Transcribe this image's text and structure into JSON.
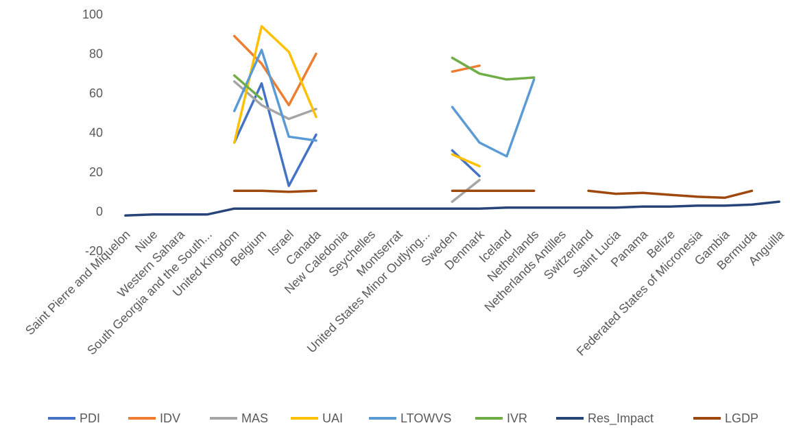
{
  "chart_data": {
    "type": "line",
    "title": "",
    "xlabel": "",
    "ylabel": "",
    "ylim": [
      -20,
      100
    ],
    "y_ticks": [
      -20,
      0,
      20,
      40,
      60,
      80,
      100
    ],
    "grid": false,
    "legend_position": "bottom",
    "categories": [
      "Saint Pierre and Miquelon",
      "Niue",
      "Western Sahara",
      "South Georgia and the South...",
      "United Kingdom",
      "Belgium",
      "Israel",
      "Canada",
      "New Caledonia",
      "Seychelles",
      "Montserrat",
      "United States Minor Outlying...",
      "Sweden",
      "Denmark",
      "Iceland",
      "Netherlands",
      "Netherlands Antilles",
      "Switzerland",
      "Saint Lucia",
      "Panama",
      "Belize",
      "Federated States of Micronesia",
      "Gambia",
      "Bermuda",
      "Anguilla"
    ],
    "series": [
      {
        "name": "PDI",
        "color": "#4472C4",
        "values": [
          null,
          null,
          null,
          null,
          35,
          65,
          13,
          39,
          null,
          null,
          null,
          null,
          31,
          18,
          null,
          null,
          null,
          null,
          null,
          null,
          null,
          null,
          null,
          null,
          null
        ]
      },
      {
        "name": "IDV",
        "color": "#ED7D31",
        "values": [
          null,
          null,
          null,
          null,
          89,
          75,
          54,
          80,
          null,
          null,
          null,
          null,
          71,
          74,
          null,
          null,
          null,
          null,
          null,
          null,
          null,
          null,
          null,
          null,
          null
        ]
      },
      {
        "name": "MAS",
        "color": "#A5A5A5",
        "values": [
          null,
          null,
          null,
          null,
          66,
          54,
          47,
          52,
          null,
          null,
          null,
          null,
          5,
          16,
          null,
          null,
          null,
          null,
          null,
          null,
          null,
          null,
          null,
          null,
          null
        ]
      },
      {
        "name": "UAI",
        "color": "#FFC000",
        "values": [
          null,
          null,
          null,
          null,
          35,
          94,
          81,
          48,
          null,
          null,
          null,
          null,
          29,
          23,
          null,
          null,
          null,
          null,
          null,
          null,
          null,
          null,
          null,
          null,
          null
        ]
      },
      {
        "name": "LTOWVS",
        "color": "#5B9BD5",
        "values": [
          null,
          null,
          null,
          null,
          51,
          82,
          38,
          36,
          null,
          null,
          null,
          null,
          53,
          35,
          28,
          67,
          null,
          null,
          null,
          null,
          null,
          null,
          null,
          null,
          null
        ]
      },
      {
        "name": "IVR",
        "color": "#70AD47",
        "values": [
          null,
          null,
          null,
          null,
          69,
          57,
          null,
          null,
          null,
          null,
          null,
          null,
          78,
          70,
          67,
          68,
          null,
          null,
          null,
          null,
          null,
          null,
          null,
          null,
          null
        ]
      },
      {
        "name": "Res_Impact",
        "color": "#264478",
        "values": [
          -2,
          -1.5,
          -1.5,
          -1.5,
          1.5,
          1.5,
          1.5,
          1.5,
          1.5,
          1.5,
          1.5,
          1.5,
          1.5,
          1.5,
          2,
          2,
          2,
          2,
          2,
          2.5,
          2.5,
          3,
          3,
          3.5,
          5
        ]
      },
      {
        "name": "LGDP",
        "color": "#9E480E",
        "values": [
          null,
          null,
          null,
          null,
          10.5,
          10.5,
          10,
          10.5,
          null,
          null,
          null,
          null,
          10.5,
          10.5,
          10.5,
          10.5,
          null,
          10.5,
          9,
          9.5,
          8.5,
          7.5,
          7,
          10.5,
          null
        ]
      }
    ]
  }
}
